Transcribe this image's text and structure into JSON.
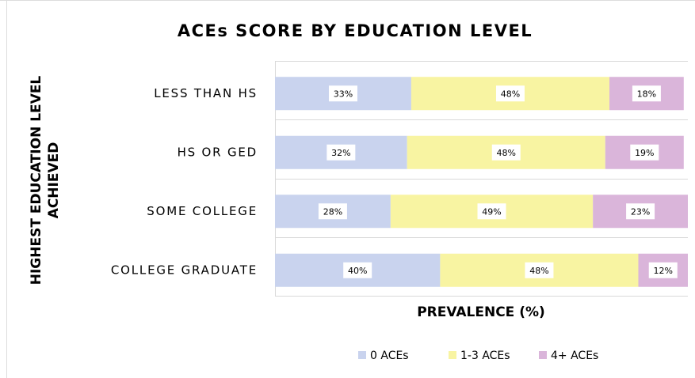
{
  "chart_data": {
    "type": "stacked_barh",
    "title": "ACEs SCORE BY EDUCATION LEVEL",
    "x_label": "PREVALENCE (%)",
    "y_label": [
      "HIGHEST EDUCATION LEVEL",
      "ACHIEVED"
    ],
    "categories": [
      "LESS THAN HS",
      "HS OR GED",
      "SOME COLLEGE",
      "COLLEGE GRADUATE"
    ],
    "xlim": [
      0,
      100
    ],
    "legend": "bottom",
    "series": [
      {
        "name": "0 ACEs",
        "color": "#c9d3ee",
        "values": [
          33,
          32,
          28,
          40
        ],
        "value_labels": [
          "33%",
          "32%",
          "28%",
          "40%"
        ]
      },
      {
        "name": "1-3 ACEs",
        "color": "#f8f4a2",
        "values": [
          48,
          48,
          49,
          48
        ],
        "value_labels": [
          "48%",
          "48%",
          "49%",
          "48%"
        ]
      },
      {
        "name": "4+ ACEs",
        "color": "#dab5da",
        "values": [
          18,
          19,
          23,
          12
        ],
        "value_labels": [
          "18%",
          "19%",
          "23%",
          "12%"
        ]
      }
    ]
  }
}
